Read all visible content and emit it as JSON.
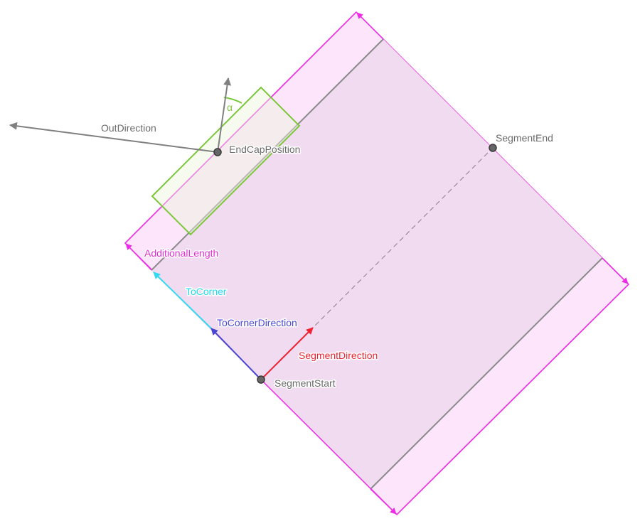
{
  "labels": {
    "out_direction": "OutDirection",
    "end_cap_position": "EndCapPosition",
    "segment_end": "SegmentEnd",
    "additional_length": "AdditionalLength",
    "to_corner": "ToCorner",
    "to_corner_direction": "ToCornerDirection",
    "segment_direction": "SegmentDirection",
    "segment_start": "SegmentStart",
    "alpha": "α"
  },
  "colors": {
    "outer_fill": "#fde6fb",
    "inner_fill": "#f1dbf0",
    "outline": "#ee2be5",
    "end_cap": "#7cc63a",
    "end_cap_fill": "#eaf5dc",
    "gray": "#8a8a8a",
    "segment_direction": "#ee2233",
    "to_corner_direction": "#4a46d4",
    "to_corner": "#35d8ee",
    "label_gray": "#6b6b6b",
    "label_magenta": "#e62bd8",
    "label_cyan": "#20d8f0",
    "label_blue": "#4a46d4",
    "label_red": "#e8222e"
  }
}
